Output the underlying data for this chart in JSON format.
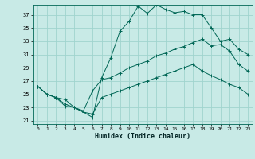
{
  "xlabel": "Humidex (Indice chaleur)",
  "bg_color": "#c8eae6",
  "line_color": "#006655",
  "grid_color": "#a0d4ce",
  "ylim": [
    20.5,
    38.5
  ],
  "xlim": [
    -0.5,
    23.5
  ],
  "yticks": [
    21,
    23,
    25,
    27,
    29,
    31,
    33,
    35,
    37
  ],
  "xticks": [
    0,
    1,
    2,
    3,
    4,
    5,
    6,
    7,
    8,
    9,
    10,
    11,
    12,
    13,
    14,
    15,
    16,
    17,
    18,
    19,
    20,
    21,
    22,
    23
  ],
  "series": {
    "max": [
      26.2,
      25.0,
      24.5,
      23.2,
      23.0,
      22.3,
      21.5,
      27.5,
      30.5,
      34.5,
      36.0,
      38.3,
      37.2,
      38.5,
      37.8,
      37.3,
      37.5,
      37.0,
      37.0,
      35.0,
      33.0,
      33.3,
      31.8,
      31.0
    ],
    "mean": [
      26.2,
      25.0,
      24.5,
      24.2,
      23.0,
      22.5,
      25.5,
      27.2,
      27.5,
      28.2,
      29.0,
      29.5,
      30.0,
      30.8,
      31.2,
      31.8,
      32.2,
      32.8,
      33.3,
      32.3,
      32.5,
      31.5,
      29.5,
      28.5
    ],
    "min": [
      26.2,
      25.0,
      24.5,
      23.5,
      23.0,
      22.3,
      22.0,
      24.5,
      25.0,
      25.5,
      26.0,
      26.5,
      27.0,
      27.5,
      28.0,
      28.5,
      29.0,
      29.5,
      28.5,
      27.8,
      27.2,
      26.5,
      26.0,
      25.0
    ]
  }
}
